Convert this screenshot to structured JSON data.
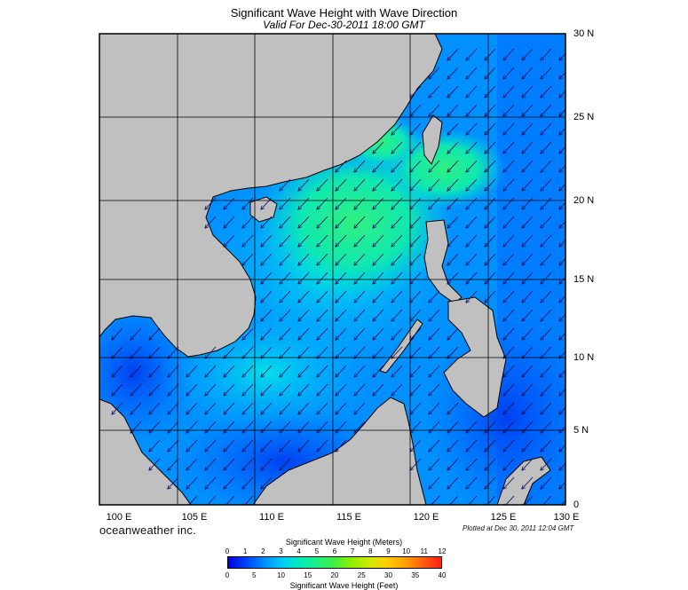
{
  "title": "Significant Wave Height with Wave Direction",
  "subtitle": "Valid For Dec-30-2011 18:00 GMT",
  "lat_labels": [
    "30 N",
    "25 N",
    "20 N",
    "15 N",
    "10 N",
    "5 N",
    "0"
  ],
  "lon_labels": [
    "100 E",
    "105 E",
    "110 E",
    "115 E",
    "120 E",
    "125 E",
    "130 E"
  ],
  "brand": "oceanweather inc.",
  "plotted": "Plotted at Dec 30, 2011 12:04 GMT",
  "colorbar": {
    "top_title": "Significant Wave Height (Meters)",
    "bottom_title": "Significant Wave Height (Feet)",
    "meter_ticks": [
      "0",
      "1",
      "2",
      "3",
      "4",
      "5",
      "6",
      "7",
      "8",
      "9",
      "10",
      "11",
      "12"
    ],
    "feet_ticks": [
      "0",
      "5",
      "10",
      "15",
      "20",
      "25",
      "30",
      "35",
      "40"
    ]
  },
  "map": {
    "lon_range": [
      100,
      130
    ],
    "lat_range": [
      0,
      30
    ],
    "land_color": "#c0c0c0",
    "grid_color": "#000000",
    "arrow_color": "#101060",
    "wave_direction": "from north-east"
  }
}
